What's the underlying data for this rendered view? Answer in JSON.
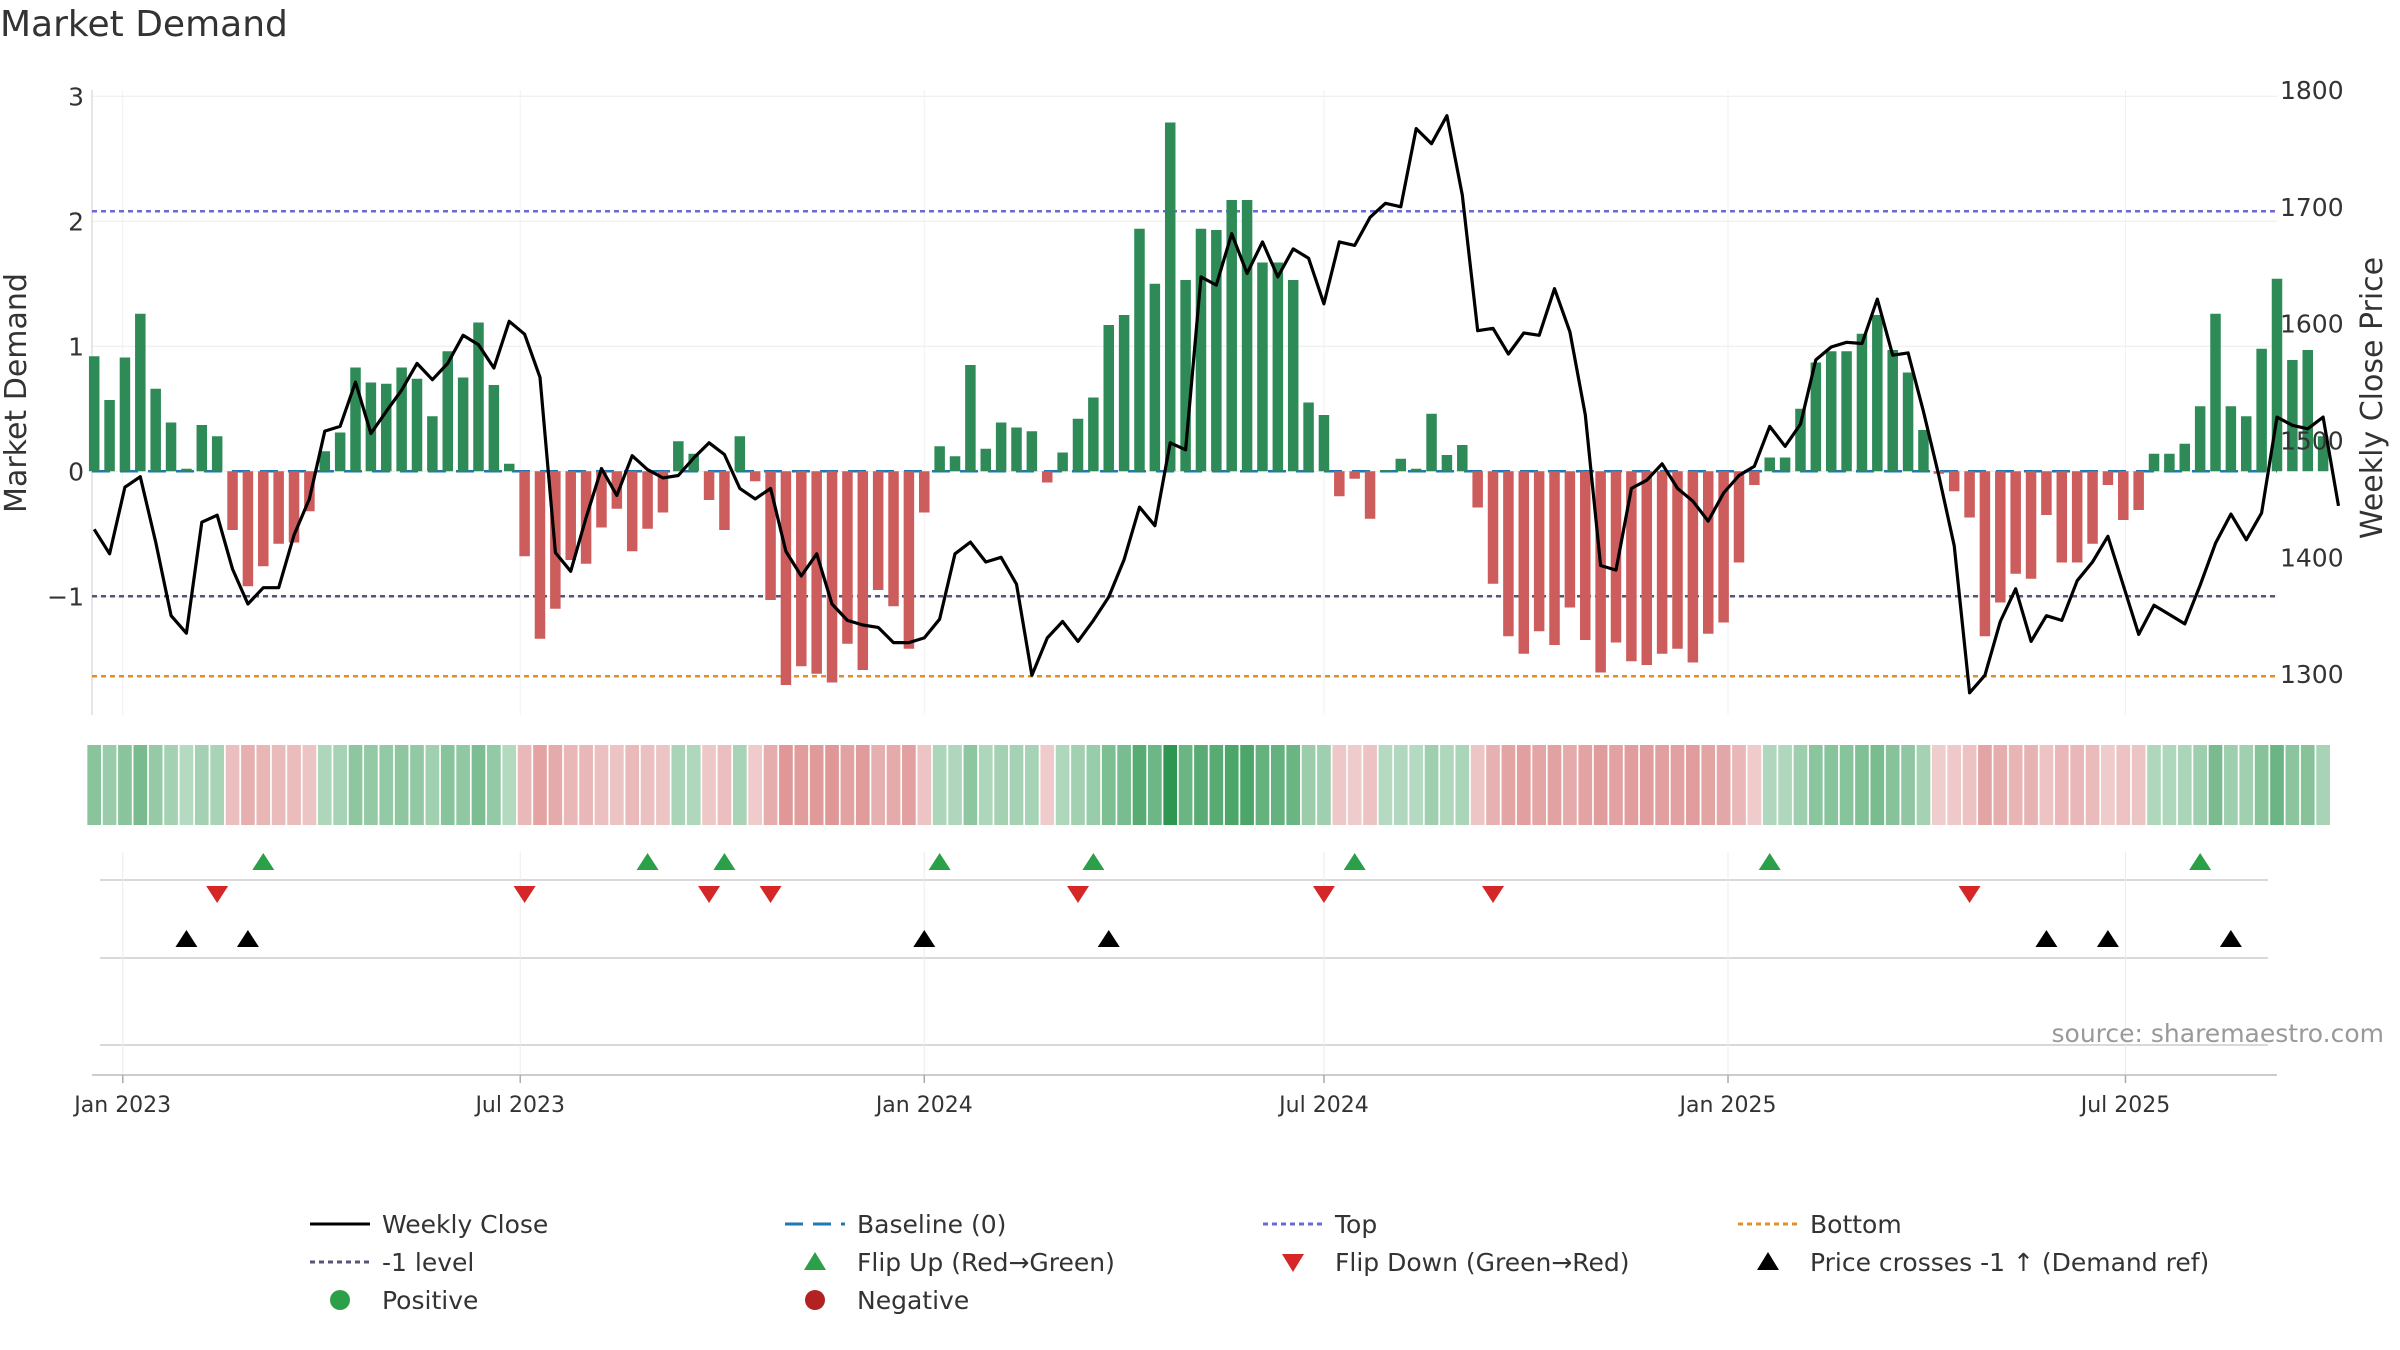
{
  "chart_data": {
    "type": "bar",
    "title": "Market Demand",
    "ylabel_left": "Market Demand",
    "ylabel_right": "Weekly Close Price",
    "left_ylim": [
      -1.95,
      3.05
    ],
    "right_ylim": [
      1265,
      1800
    ],
    "left_ticks": [
      3,
      2,
      1,
      0,
      -1
    ],
    "left_tick_labels": [
      "3",
      "2",
      "1",
      "0",
      "−1"
    ],
    "right_ticks": [
      1800,
      1700,
      1600,
      1500,
      1400,
      1300
    ],
    "right_tick_labels": [
      "1800",
      "1700",
      "1600",
      "1500",
      "1400",
      "1300"
    ],
    "x_start": "2022-12-18",
    "x_end": "2025-09-08",
    "x_ticks": [
      {
        "date": "2023-01-01",
        "label": "Jan 2023"
      },
      {
        "date": "2023-07-01",
        "label": "Jul 2023"
      },
      {
        "date": "2024-01-01",
        "label": "Jan 2024"
      },
      {
        "date": "2024-07-01",
        "label": "Jul 2024"
      },
      {
        "date": "2025-01-01",
        "label": "Jan 2025"
      },
      {
        "date": "2025-07-01",
        "label": "Jul 2025"
      }
    ],
    "first_week": "2022-12-19",
    "weekly_step_days": 7,
    "demand": [
      0.92,
      0.57,
      0.91,
      1.26,
      0.66,
      0.39,
      0.02,
      0.37,
      0.28,
      -0.47,
      -0.92,
      -0.76,
      -0.58,
      -0.57,
      -0.32,
      0.16,
      0.31,
      0.83,
      0.71,
      0.7,
      0.83,
      0.74,
      0.44,
      0.96,
      0.75,
      1.19,
      0.69,
      0.06,
      -0.68,
      -1.34,
      -1.1,
      -0.71,
      -0.74,
      -0.45,
      -0.3,
      -0.64,
      -0.46,
      -0.33,
      0.24,
      0.14,
      -0.23,
      -0.47,
      0.28,
      -0.08,
      -1.03,
      -1.71,
      -1.56,
      -1.62,
      -1.69,
      -1.38,
      -1.59,
      -0.95,
      -1.08,
      -1.42,
      -0.33,
      0.2,
      0.12,
      0.85,
      0.18,
      0.39,
      0.35,
      0.32,
      -0.09,
      0.15,
      0.42,
      0.59,
      1.17,
      1.25,
      1.94,
      1.5,
      2.79,
      1.53,
      1.94,
      1.93,
      2.17,
      2.17,
      1.67,
      1.67,
      1.53,
      0.55,
      0.45,
      -0.2,
      -0.06,
      -0.38,
      0.01,
      0.1,
      0.02,
      0.46,
      0.13,
      0.21,
      -0.29,
      -0.9,
      -1.32,
      -1.46,
      -1.28,
      -1.39,
      -1.09,
      -1.35,
      -1.61,
      -1.37,
      -1.52,
      -1.55,
      -1.46,
      -1.42,
      -1.53,
      -1.3,
      -1.21,
      -0.73,
      -0.11,
      0.11,
      0.11,
      0.5,
      0.87,
      0.96,
      0.96,
      1.1,
      1.25,
      0.97,
      0.79,
      0.33,
      -0.02,
      -0.16,
      -0.37,
      -1.32,
      -1.05,
      -0.82,
      -0.86,
      -0.35,
      -0.73,
      -0.73,
      -0.58,
      -0.11,
      -0.39,
      -0.31,
      0.14,
      0.14,
      0.22,
      0.52,
      1.26,
      0.52,
      0.44,
      0.98,
      1.54,
      0.89,
      0.97,
      0.28
    ],
    "series": [
      {
        "name": "Weekly Close",
        "values": [
          1424,
          1403,
          1460,
          1469,
          1413,
          1350,
          1335,
          1430,
          1436,
          1390,
          1360,
          1374,
          1374,
          1419,
          1450,
          1508,
          1512,
          1550,
          1506,
          1525,
          1543,
          1566,
          1552,
          1566,
          1590,
          1582,
          1562,
          1602,
          1591,
          1554,
          1404,
          1388,
          1434,
          1476,
          1453,
          1487,
          1475,
          1468,
          1470,
          1485,
          1498,
          1488,
          1459,
          1450,
          1459,
          1405,
          1384,
          1403,
          1360,
          1346,
          1342,
          1340,
          1327,
          1327,
          1331,
          1347,
          1403,
          1413,
          1396,
          1400,
          1377,
          1299,
          1331,
          1345,
          1328,
          1346,
          1366,
          1398,
          1443,
          1427,
          1498,
          1492,
          1640,
          1633,
          1677,
          1643,
          1670,
          1640,
          1664,
          1656,
          1617,
          1670,
          1667,
          1691,
          1703,
          1700,
          1767,
          1754,
          1778,
          1710,
          1594,
          1596,
          1574,
          1592,
          1590,
          1630,
          1593,
          1522,
          1393,
          1389,
          1459,
          1466,
          1480,
          1459,
          1448,
          1431,
          1455,
          1470,
          1478,
          1512,
          1495,
          1514,
          1569,
          1580,
          1584,
          1583,
          1621,
          1573,
          1575,
          1525,
          1470,
          1410,
          1284,
          1299,
          1345,
          1373,
          1328,
          1350,
          1346,
          1380,
          1396,
          1418,
          1376,
          1334,
          1359,
          1351,
          1343,
          1376,
          1412,
          1437,
          1415,
          1438,
          1520,
          1513,
          1510,
          1520,
          1444
        ]
      }
    ],
    "reference_lines": [
      {
        "name": "Baseline (0)",
        "axis": "left",
        "value": 0,
        "color": "#1f77b4",
        "style": "dashed"
      },
      {
        "name": "Top",
        "axis": "left",
        "value": 2.08,
        "color": "#6a6ad0",
        "style": "dotted"
      },
      {
        "name": "-1 level",
        "axis": "left",
        "value": -1,
        "color": "#555577",
        "style": "dotted"
      },
      {
        "name": "Bottom",
        "axis": "left",
        "value": -1.64,
        "color": "#e0902b",
        "style": "dotted"
      }
    ],
    "flip_up_dates": [
      "2023-03-06",
      "2023-08-28",
      "2023-10-02",
      "2024-01-08",
      "2024-03-18",
      "2024-07-15",
      "2025-01-20",
      "2025-08-04"
    ],
    "flip_down_dates": [
      "2023-02-13",
      "2023-07-03",
      "2023-09-25",
      "2023-10-23",
      "2024-03-11",
      "2024-07-01",
      "2024-09-16",
      "2025-04-21"
    ],
    "price_cross_dates": [
      "2023-01-30",
      "2023-02-27",
      "2024-01-01",
      "2024-03-25",
      "2025-05-26",
      "2025-06-23",
      "2025-08-18"
    ],
    "source_text": "source: sharemaestro.com",
    "legend": [
      {
        "label": "Weekly Close",
        "type": "line-solid",
        "color": "#000000"
      },
      {
        "label": "Baseline (0)",
        "type": "line-dashed",
        "color": "#1f77b4"
      },
      {
        "label": "Top",
        "type": "line-dotted",
        "color": "#6a6ad0"
      },
      {
        "label": "Bottom",
        "type": "line-dotted",
        "color": "#e0902b"
      },
      {
        "label": "-1 level",
        "type": "line-dotted",
        "color": "#555577"
      },
      {
        "label": "Flip Up (Red→Green)",
        "type": "triangle-up",
        "color": "#2ca048"
      },
      {
        "label": "Flip Down (Green→Red)",
        "type": "triangle-down",
        "color": "#d62728"
      },
      {
        "label": "Price crosses -1 ↑ (Demand ref)",
        "type": "triangle-up",
        "color": "#000000"
      },
      {
        "label": "Positive",
        "type": "dot",
        "color": "#2ca048"
      },
      {
        "label": "Negative",
        "type": "dot",
        "color": "#b22222"
      }
    ],
    "colors": {
      "positive_bar": "#2e8b57",
      "negative_bar": "#cd5c5c",
      "line": "#000000"
    }
  }
}
